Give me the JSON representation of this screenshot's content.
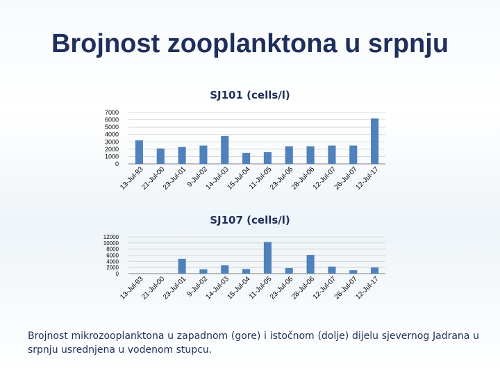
{
  "slide": {
    "title": "Brojnost zooplanktona u srpnju",
    "caption": "Brojnost mikrozooplanktona u zapadnom (gore) i istočnom (dolje) dijelu sjevernog Jadrana u srpnju usrednjena u vodenom stupcu."
  },
  "colors": {
    "bar": "#4f81bd",
    "grid": "#d0d0d0",
    "axis": "#7f7f7f",
    "text": "#1f2f5c"
  },
  "chart_data": [
    {
      "type": "bar",
      "title": "SJ101 (cells/l)",
      "categories": [
        "13-Jul-93",
        "21-Jul-00",
        "23-Jul-01",
        "9-Jul-02",
        "14-Jul-03",
        "15-Jul-04",
        "11-Jul-05",
        "23-Jul-06",
        "28-Jul-06",
        "12-Jul-07",
        "26-Jul-07",
        "12-Jul-17"
      ],
      "values": [
        3200,
        2100,
        2300,
        2500,
        3800,
        1500,
        1600,
        2400,
        2400,
        2500,
        2500,
        6200
      ],
      "yticks": [
        "7000",
        "6000",
        "5000",
        "4000",
        "3000",
        "2000",
        "1000",
        "0"
      ],
      "ylim": [
        0,
        7000
      ],
      "grid": true,
      "legend": "none"
    },
    {
      "type": "bar",
      "title": "SJ107 (cells/l)",
      "categories": [
        "13-Jul-93",
        "21-Jul-00",
        "23-Jul-01",
        "9-Jul-02",
        "14-Jul-03",
        "15-Jul-04",
        "11-Jul-05",
        "23-Jul-06",
        "28-Jul-06",
        "12-Jul-07",
        "26-Jul-07",
        "12-Jul-17"
      ],
      "values": [
        0,
        0,
        4800,
        1400,
        2700,
        1500,
        10300,
        1800,
        6100,
        2300,
        1100,
        2000
      ],
      "yticks": [
        "12000",
        "10000",
        "8000",
        "6000",
        "4000",
        "2000",
        "0"
      ],
      "ylim": [
        0,
        12000
      ],
      "grid": true,
      "legend": "none"
    }
  ]
}
